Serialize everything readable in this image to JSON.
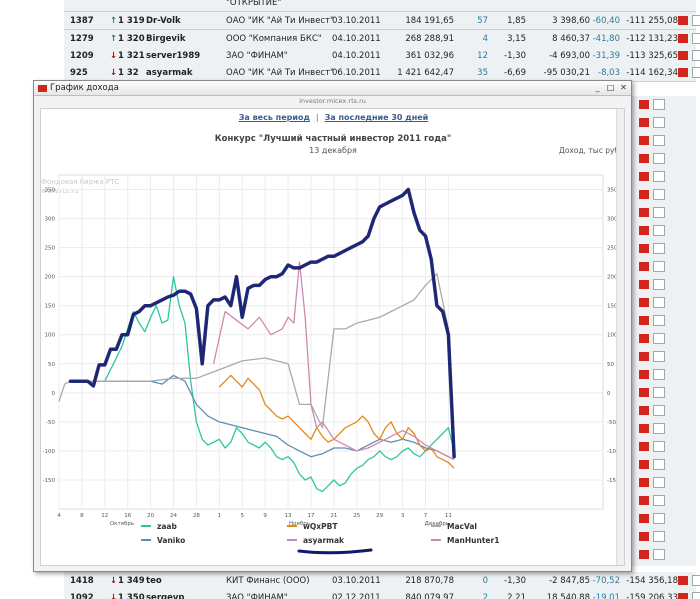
{
  "table_rows_top": [
    {
      "rank": "",
      "arrow": "",
      "prev": "",
      "name": "",
      "firm": "\"ОТКРЫТИЕ\"",
      "date": "",
      "amount": "",
      "n": "",
      "pct": "",
      "abs": "",
      "rel": "",
      "total": "",
      "y_top": -6
    },
    {
      "rank": "1387",
      "arrow": "↑",
      "prev": "1 319",
      "name": "Dr-Volk",
      "firm": "ОАО \"ИК \"Ай Ти Инвест\"",
      "date": "03.10.2011",
      "amount": "184 191,65",
      "n": "57",
      "pct": "1,85",
      "abs": "3 398,60",
      "rel": "-60,40",
      "total": "-111 255,08",
      "y_top": 12
    },
    {
      "rank": "1279",
      "arrow": "↑",
      "prev": "1 320",
      "name": "Birgevik",
      "firm": "ООО \"Компания БКС\"",
      "date": "04.10.2011",
      "amount": "268 288,91",
      "n": "4",
      "pct": "3,15",
      "abs": "8 460,37",
      "rel": "-41,80",
      "total": "-112 131,23",
      "y_top": 30
    },
    {
      "rank": "1209",
      "arrow": "↓",
      "prev": "1 321",
      "name": "server1989",
      "firm": "ЗАО \"ФИНАМ\"",
      "date": "04.10.2011",
      "amount": "361 032,96",
      "n": "12",
      "pct": "-1,30",
      "abs": "-4 693,00",
      "rel": "-31,39",
      "total": "-113 325,65",
      "y_top": 47
    },
    {
      "rank": "925",
      "arrow": "↓",
      "prev": "1 32",
      "name": "asyarmak",
      "firm": "ОАО \"ИК \"Ай Ти Инвест\"",
      "date": "06.10.2011",
      "amount": "1 421 642,47",
      "n": "35",
      "pct": "-6,69",
      "abs": "-95 030,21",
      "rel": "-8,03",
      "total": "-114 162,34",
      "y_top": 64
    }
  ],
  "table_rows_bottom": [
    {
      "rank": "1418",
      "arrow": "↓",
      "prev": "1 349",
      "name": "teo",
      "firm": "КИТ Финанс (ООО)",
      "date": "03.10.2011",
      "amount": "218 870,78",
      "n": "0",
      "pct": "-1,30",
      "abs": "-2 847,85",
      "rel": "-70,52",
      "total": "-154 356,18",
      "y_top": 572
    },
    {
      "rank": "1092",
      "arrow": "↓",
      "prev": "1 350",
      "name": "sergevp",
      "firm": "ЗАО \"ФИНАМ\"",
      "date": "02.12.2011",
      "amount": "840 079,97",
      "n": "2",
      "pct": "2,21",
      "abs": "18 540,88",
      "rel": "-19,01",
      "total": "-159 206,33",
      "y_top": 589
    }
  ],
  "window": {
    "title": "График дохода",
    "url": "investor.micex.rts.ru",
    "link_all": "За весь период",
    "link_30": "За последние 30 дней",
    "btn_min": "_",
    "btn_max": "□",
    "btn_close": "✕"
  },
  "chart_data": {
    "type": "line",
    "watermark": [
      "Фондовая биржа РТС",
      "www.rts.ru"
    ],
    "title": "Конкурс \"Лучший частный инвестор 2011 года\"",
    "subtitle": "13 декабря",
    "ylabel": "Доход, тыс руб",
    "ylim": [
      -200,
      375
    ],
    "yticks": [
      -150,
      -100,
      -50,
      0,
      50,
      100,
      150,
      200,
      250,
      300,
      350
    ],
    "xlim": [
      4,
      99
    ],
    "xticks": [
      {
        "x": 4,
        "label": "4"
      },
      {
        "x": 8,
        "label": "8"
      },
      {
        "x": 12,
        "label": "12"
      },
      {
        "x": 16,
        "label": "16"
      },
      {
        "x": 20,
        "label": "20"
      },
      {
        "x": 24,
        "label": "24"
      },
      {
        "x": 28,
        "label": "28"
      },
      {
        "x": 32,
        "label": "1"
      },
      {
        "x": 36,
        "label": "5"
      },
      {
        "x": 40,
        "label": "9"
      },
      {
        "x": 44,
        "label": "13"
      },
      {
        "x": 48,
        "label": "17"
      },
      {
        "x": 52,
        "label": "21"
      },
      {
        "x": 56,
        "label": "25"
      },
      {
        "x": 60,
        "label": "29"
      },
      {
        "x": 64,
        "label": "3"
      },
      {
        "x": 68,
        "label": "7"
      },
      {
        "x": 72,
        "label": "11"
      }
    ],
    "months": [
      {
        "x": 15,
        "label": "Октябрь"
      },
      {
        "x": 46,
        "label": "Ноябрь"
      },
      {
        "x": 70,
        "label": "Декабрь"
      }
    ],
    "grid": true,
    "legend_position": "bottom",
    "series": [
      {
        "name": "zaab",
        "color": "#2ec4a0",
        "x": [
          12,
          13,
          14,
          15,
          16,
          17,
          18,
          19,
          20,
          21,
          22,
          23,
          24,
          25,
          26,
          27,
          28,
          29,
          30,
          31,
          32,
          33,
          34,
          35,
          36,
          37,
          38,
          39,
          40,
          41,
          42,
          43,
          44,
          45,
          46,
          47,
          48,
          49,
          50,
          51,
          52,
          53,
          54,
          55,
          56,
          57,
          58,
          59,
          60,
          61,
          62,
          63,
          64,
          65,
          66,
          67,
          68,
          69,
          70,
          71,
          72,
          73
        ],
        "y": [
          20,
          40,
          60,
          80,
          110,
          140,
          120,
          105,
          130,
          150,
          120,
          125,
          200,
          150,
          120,
          20,
          -50,
          -80,
          -90,
          -85,
          -80,
          -95,
          -85,
          -60,
          -70,
          -85,
          -90,
          -95,
          -85,
          -95,
          -110,
          -115,
          -110,
          -120,
          -140,
          -150,
          -145,
          -165,
          -170,
          -160,
          -150,
          -160,
          -155,
          -140,
          -130,
          -125,
          -115,
          -110,
          -100,
          -110,
          -115,
          -110,
          -100,
          -95,
          -105,
          -110,
          -100,
          -90,
          -80,
          -70,
          -60,
          -100
        ]
      },
      {
        "name": "Vaniko",
        "color": "#5b8fb3",
        "x": [
          8,
          12,
          16,
          20,
          22,
          24,
          26,
          28,
          30,
          32,
          34,
          36,
          38,
          40,
          42,
          44,
          46,
          48,
          50,
          52,
          54,
          56,
          58,
          60,
          62,
          64,
          66,
          68,
          70,
          72,
          73
        ],
        "y": [
          20,
          20,
          20,
          20,
          15,
          30,
          20,
          -20,
          -40,
          -50,
          -55,
          -60,
          -65,
          -70,
          -75,
          -90,
          -100,
          -110,
          -105,
          -95,
          -95,
          -100,
          -90,
          -80,
          -85,
          -80,
          -85,
          -95,
          -100,
          -110,
          -115
        ]
      },
      {
        "name": "wQxPBT",
        "color": "#e08a1a",
        "x": [
          32,
          33,
          34,
          35,
          36,
          37,
          38,
          39,
          40,
          41,
          42,
          43,
          44,
          45,
          46,
          47,
          48,
          49,
          50,
          51,
          52,
          53,
          54,
          55,
          56,
          57,
          58,
          59,
          60,
          61,
          62,
          63,
          64,
          65,
          66,
          67,
          68,
          69,
          70,
          71,
          72,
          73
        ],
        "y": [
          10,
          20,
          30,
          20,
          10,
          25,
          15,
          5,
          -20,
          -30,
          -40,
          -45,
          -40,
          -50,
          -60,
          -70,
          -80,
          -60,
          -75,
          -85,
          -80,
          -70,
          -60,
          -55,
          -50,
          -40,
          -50,
          -70,
          -80,
          -60,
          -50,
          -70,
          -80,
          -60,
          -70,
          -90,
          -100,
          -95,
          -110,
          -115,
          -120,
          -130
        ]
      },
      {
        "name": "asyarmak",
        "color": "#b88ad0",
        "x": [
          6,
          7,
          8,
          9,
          10,
          11,
          12,
          13,
          14,
          15,
          16,
          17,
          18,
          19,
          20,
          21,
          22,
          23,
          24,
          25,
          26,
          27,
          28,
          29,
          30,
          31,
          32,
          33,
          34,
          35,
          36,
          37,
          38,
          39,
          40,
          41,
          42,
          43,
          44,
          45,
          46,
          47,
          48,
          49,
          50,
          51,
          52,
          53,
          54,
          55,
          56,
          57,
          58,
          59,
          60,
          61,
          62,
          63,
          64,
          65,
          66,
          67,
          68,
          69,
          70,
          71,
          72,
          73
        ],
        "y": [
          20,
          20,
          20,
          20,
          12,
          48,
          48,
          75,
          75,
          100,
          100,
          135,
          140,
          150,
          150,
          155,
          160,
          165,
          168,
          175,
          175,
          170,
          145,
          50,
          150,
          160,
          160,
          165,
          150,
          200,
          130,
          180,
          185,
          185,
          195,
          200,
          200,
          205,
          220,
          215,
          215,
          220,
          225,
          225,
          230,
          235,
          235,
          240,
          245,
          250,
          255,
          260,
          270,
          300,
          320,
          325,
          330,
          335,
          340,
          350,
          310,
          280,
          270,
          230,
          150,
          140,
          100,
          -110
        ]
      },
      {
        "name": "MacVal",
        "color": "#aaaaaa",
        "x": [
          4,
          5,
          6,
          8,
          12,
          16,
          20,
          24,
          28,
          32,
          36,
          40,
          44,
          46,
          48,
          50,
          52,
          54,
          56,
          58,
          60,
          62,
          64,
          66,
          68,
          70,
          72,
          73
        ],
        "y": [
          -15,
          15,
          20,
          20,
          20,
          20,
          20,
          25,
          25,
          40,
          55,
          60,
          50,
          -20,
          -20,
          -60,
          110,
          110,
          120,
          125,
          130,
          140,
          150,
          160,
          185,
          205,
          110,
          -90
        ]
      },
      {
        "name": "ManHunter1",
        "color": "#d088b0",
        "x": [
          31,
          33,
          35,
          37,
          39,
          41,
          43,
          44,
          45,
          46,
          47,
          48,
          49,
          50,
          52,
          54,
          56,
          58,
          60,
          62,
          64,
          66,
          68,
          70,
          72,
          73
        ],
        "y": [
          50,
          140,
          125,
          110,
          130,
          100,
          110,
          130,
          120,
          225,
          130,
          -20,
          -60,
          -50,
          -80,
          -90,
          -100,
          -95,
          -85,
          -75,
          -65,
          -75,
          -90,
          -100,
          -110,
          -115
        ]
      }
    ]
  }
}
